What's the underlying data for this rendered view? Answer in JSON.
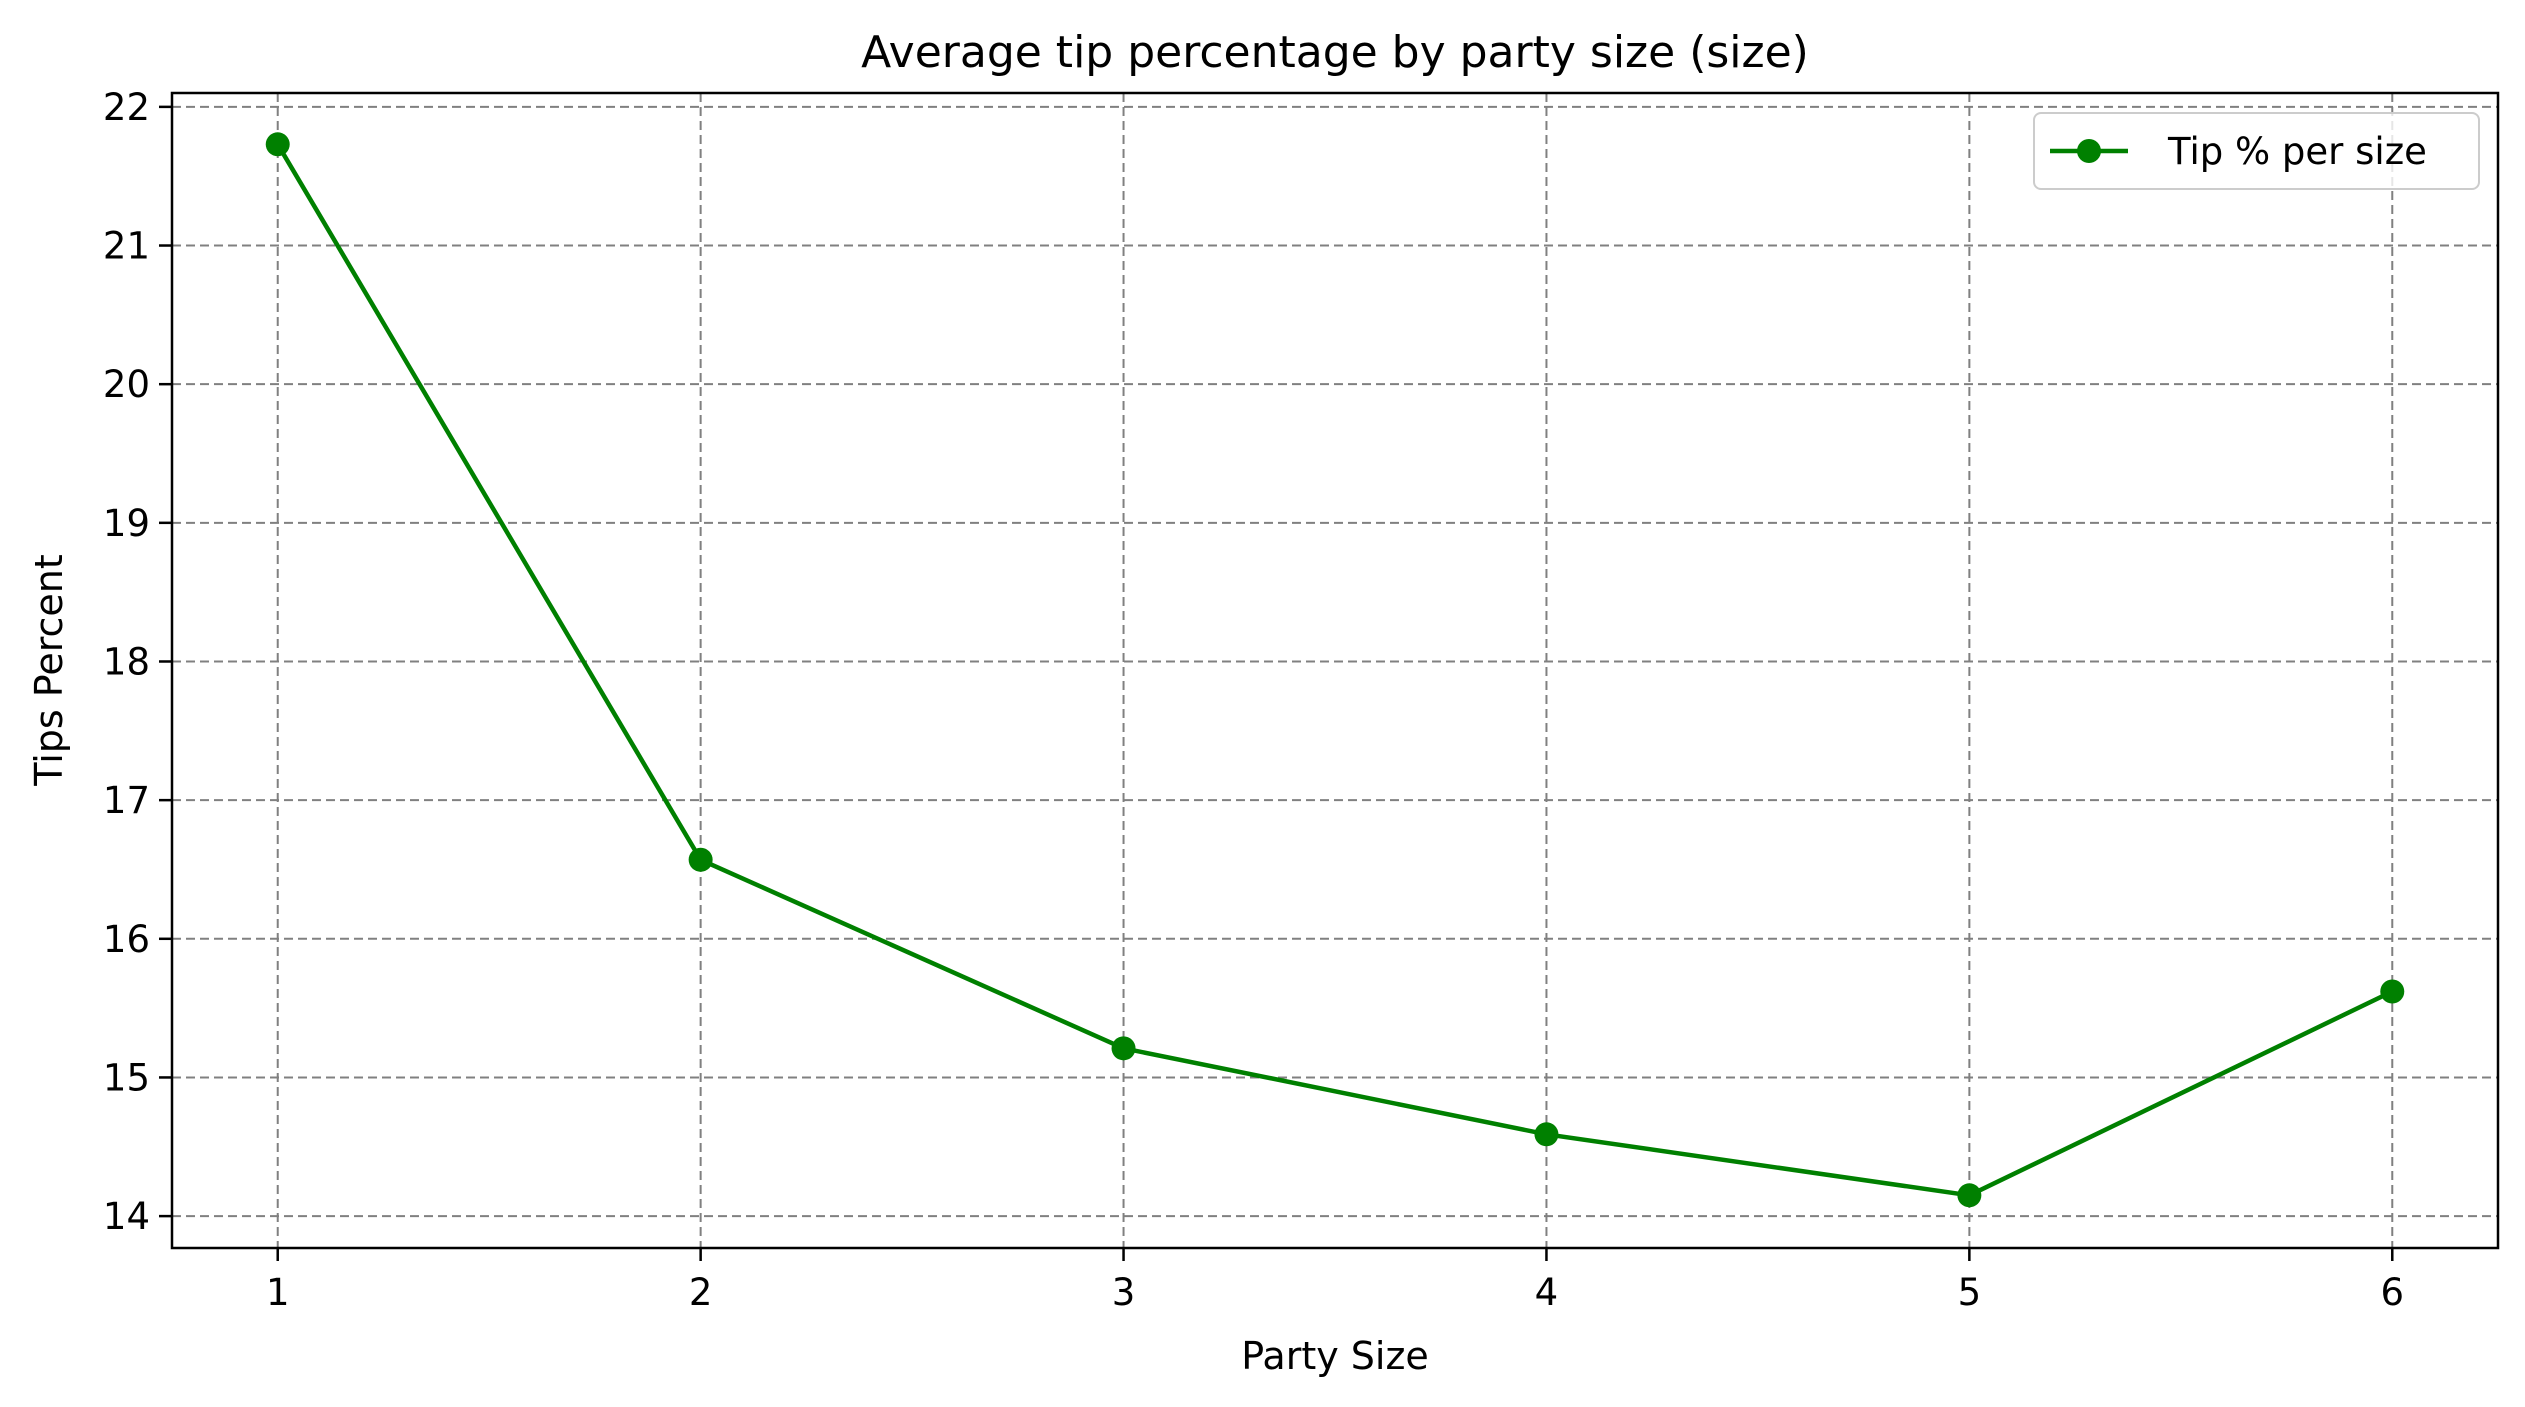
{
  "chart_data": {
    "type": "line",
    "title": "Average tip percentage by party size (size)",
    "xlabel": "Party Size",
    "ylabel": "Tips Percent",
    "x": [
      1,
      2,
      3,
      4,
      5,
      6
    ],
    "series": [
      {
        "name": "Tip % per size",
        "values": [
          21.73,
          16.57,
          15.21,
          14.59,
          14.15,
          15.62
        ],
        "color": "#008000",
        "marker": "circle"
      }
    ],
    "x_ticks": [
      "1",
      "2",
      "3",
      "4",
      "5",
      "6"
    ],
    "y_ticks": [
      "14",
      "15",
      "16",
      "17",
      "18",
      "19",
      "20",
      "21",
      "22"
    ],
    "xlim": [
      0.75,
      6.25
    ],
    "ylim": [
      13.77,
      22.1
    ],
    "grid": true,
    "grid_style": "dashed",
    "grid_color": "#808080",
    "legend_position": "upper right"
  }
}
